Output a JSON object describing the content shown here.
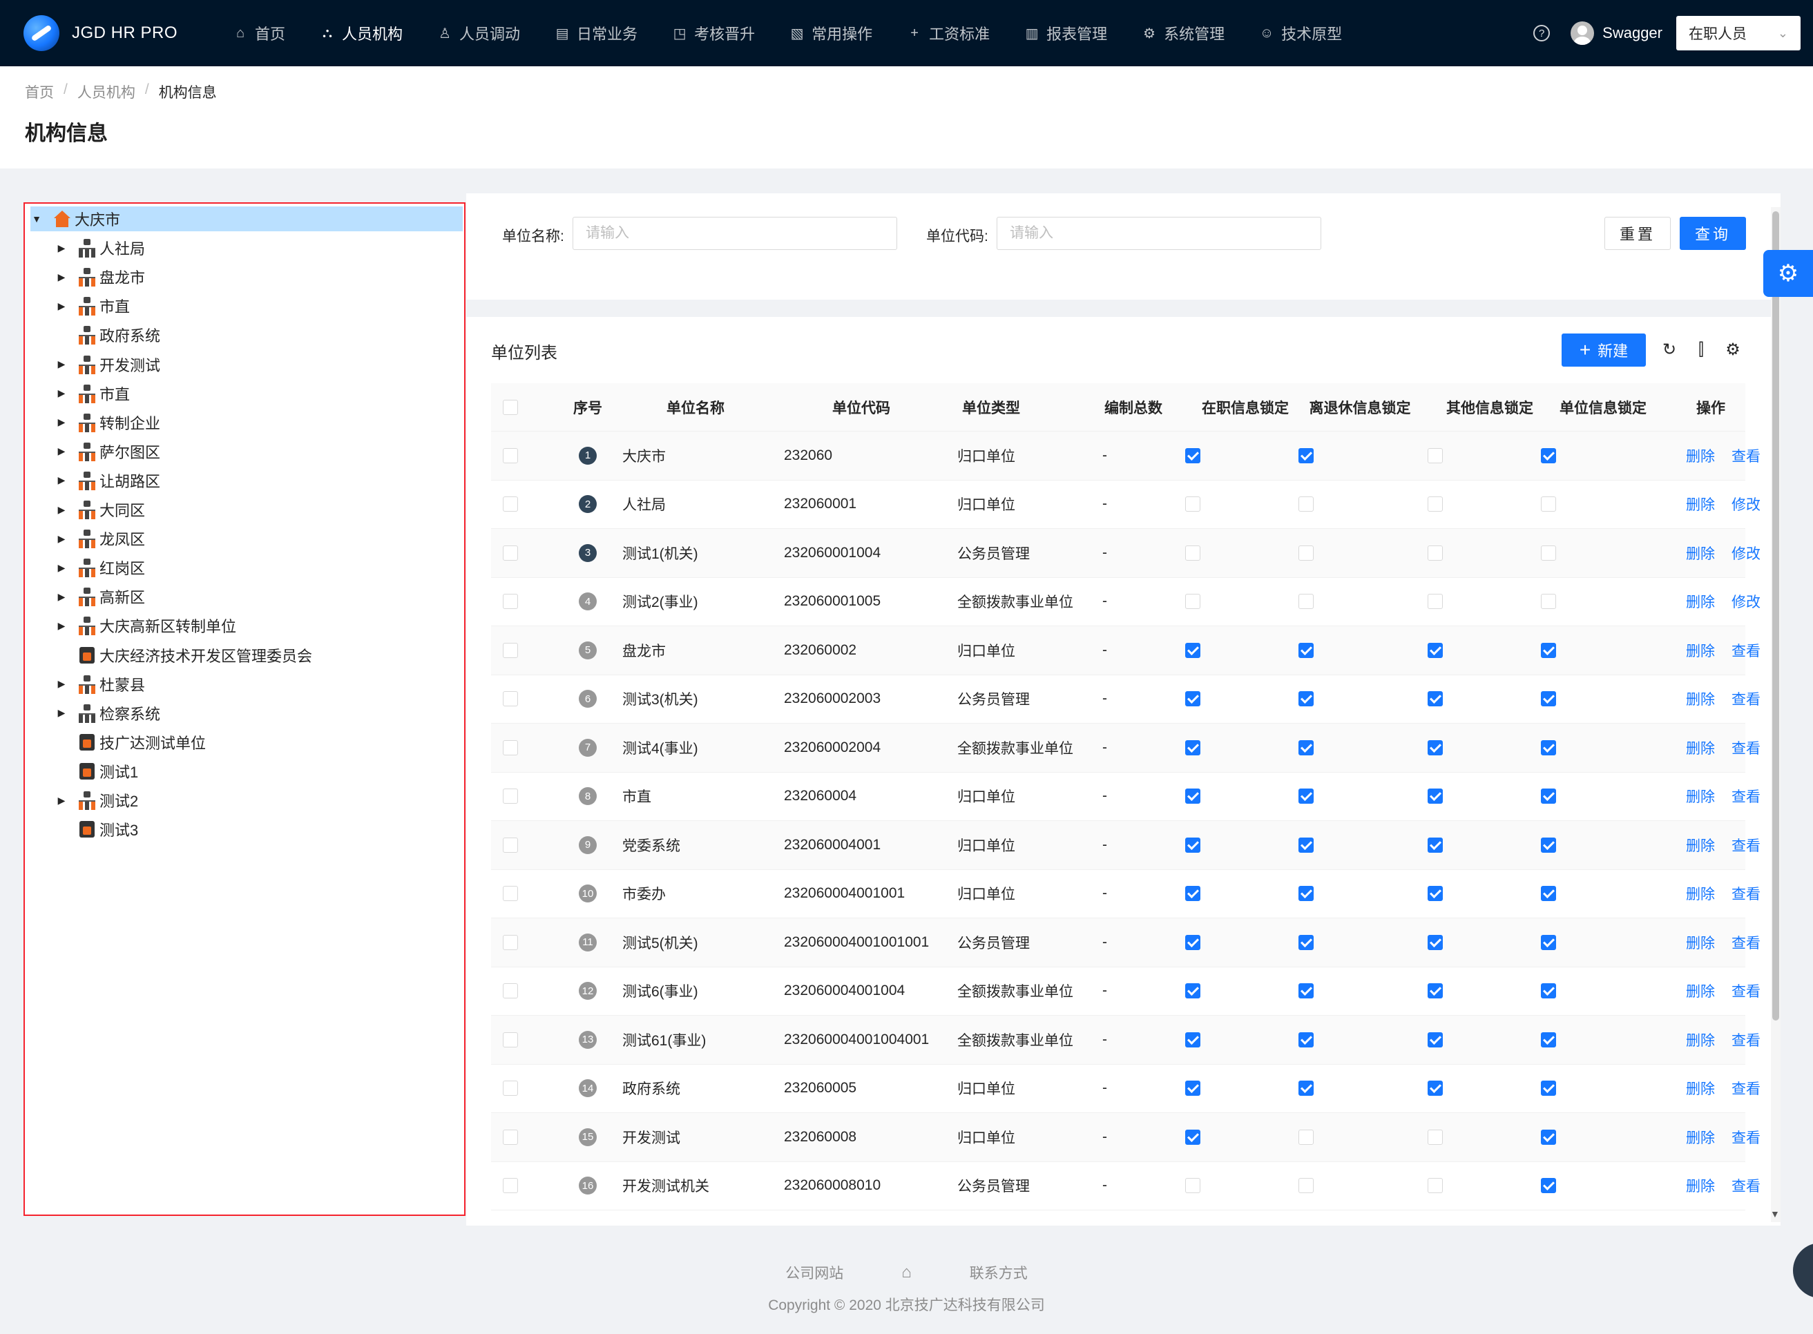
{
  "app": {
    "title": "JGD HR PRO"
  },
  "nav": [
    {
      "label": "首页",
      "icon": "home-icon",
      "glyph": "⌂"
    },
    {
      "label": "人员机构",
      "icon": "org-icon",
      "glyph": "⛬",
      "active": true
    },
    {
      "label": "人员调动",
      "icon": "user-icon",
      "glyph": "♙"
    },
    {
      "label": "日常业务",
      "icon": "profile-icon",
      "glyph": "▤"
    },
    {
      "label": "考核晋升",
      "icon": "rise-icon",
      "glyph": "◳"
    },
    {
      "label": "常用操作",
      "icon": "file-icon",
      "glyph": "▧"
    },
    {
      "label": "工资标准",
      "icon": "plus-icon",
      "glyph": "+"
    },
    {
      "label": "报表管理",
      "icon": "chart-icon",
      "glyph": "▥"
    },
    {
      "label": "系统管理",
      "icon": "setting-icon",
      "glyph": "⚙"
    },
    {
      "label": "技术原型",
      "icon": "smile-icon",
      "glyph": "☺"
    }
  ],
  "header": {
    "username": "Swagger",
    "status_select": "在职人员"
  },
  "breadcrumb": [
    "首页",
    "人员机构",
    "机构信息"
  ],
  "page_title": "机构信息",
  "tree": [
    {
      "label": "大庆市",
      "icon": "home",
      "level": 0,
      "expanded": true,
      "selected": true
    },
    {
      "label": "人社局",
      "icon": "org-dark",
      "level": 1,
      "has_children": true
    },
    {
      "label": "盘龙市",
      "icon": "org",
      "level": 1,
      "has_children": true
    },
    {
      "label": "市直",
      "icon": "org",
      "level": 1,
      "has_children": true
    },
    {
      "label": "政府系统",
      "icon": "org",
      "level": 1,
      "has_children": false
    },
    {
      "label": "开发测试",
      "icon": "org",
      "level": 1,
      "has_children": true
    },
    {
      "label": "市直",
      "icon": "org",
      "level": 1,
      "has_children": true
    },
    {
      "label": "转制企业",
      "icon": "org",
      "level": 1,
      "has_children": true
    },
    {
      "label": "萨尔图区",
      "icon": "org",
      "level": 1,
      "has_children": true
    },
    {
      "label": "让胡路区",
      "icon": "org",
      "level": 1,
      "has_children": true
    },
    {
      "label": "大同区",
      "icon": "org",
      "level": 1,
      "has_children": true
    },
    {
      "label": "龙凤区",
      "icon": "org",
      "level": 1,
      "has_children": true
    },
    {
      "label": "红岗区",
      "icon": "org",
      "level": 1,
      "has_children": true
    },
    {
      "label": "高新区",
      "icon": "org",
      "level": 1,
      "has_children": true
    },
    {
      "label": "大庆高新区转制单位",
      "icon": "org",
      "level": 1,
      "has_children": true
    },
    {
      "label": "大庆经济技术开发区管理委员会",
      "icon": "unit",
      "level": 1,
      "has_children": false
    },
    {
      "label": "杜蒙县",
      "icon": "org",
      "level": 1,
      "has_children": true
    },
    {
      "label": "检察系统",
      "icon": "org-dark",
      "level": 1,
      "has_children": true
    },
    {
      "label": "技广达测试单位",
      "icon": "unit",
      "level": 1,
      "has_children": false
    },
    {
      "label": "测试1",
      "icon": "unit",
      "level": 1,
      "has_children": false
    },
    {
      "label": "测试2",
      "icon": "org",
      "level": 1,
      "has_children": true
    },
    {
      "label": "测试3",
      "icon": "unit",
      "level": 1,
      "has_children": false
    }
  ],
  "search": {
    "name_label": "单位名称:",
    "name_placeholder": "请输入",
    "code_label": "单位代码:",
    "code_placeholder": "请输入",
    "reset_label": "重置",
    "query_label": "查询"
  },
  "table": {
    "title": "单位列表",
    "new_label": "新建",
    "columns": [
      "序号",
      "单位名称",
      "单位代码",
      "单位类型",
      "编制总数",
      "在职信息锁定",
      "离退休信息锁定",
      "其他信息锁定",
      "单位信息锁定",
      "操作"
    ],
    "rows": [
      {
        "no": "1",
        "name": "大庆市",
        "code": "232060",
        "type": "归口单位",
        "total": "-",
        "locks": [
          true,
          true,
          false,
          true
        ],
        "actions": [
          "删除",
          "查看"
        ]
      },
      {
        "no": "2",
        "name": "人社局",
        "code": "232060001",
        "type": "归口单位",
        "total": "-",
        "locks": [
          false,
          false,
          false,
          false
        ],
        "actions": [
          "删除",
          "修改"
        ]
      },
      {
        "no": "3",
        "name": "测试1(机关)",
        "code": "232060001004",
        "type": "公务员管理",
        "total": "-",
        "locks": [
          false,
          false,
          false,
          false
        ],
        "actions": [
          "删除",
          "修改"
        ]
      },
      {
        "no": "4",
        "name": "测试2(事业)",
        "code": "232060001005",
        "type": "全额拨款事业单位",
        "total": "-",
        "locks": [
          false,
          false,
          false,
          false
        ],
        "actions": [
          "删除",
          "修改"
        ]
      },
      {
        "no": "5",
        "name": "盘龙市",
        "code": "232060002",
        "type": "归口单位",
        "total": "-",
        "locks": [
          true,
          true,
          true,
          true
        ],
        "actions": [
          "删除",
          "查看"
        ]
      },
      {
        "no": "6",
        "name": "测试3(机关)",
        "code": "232060002003",
        "type": "公务员管理",
        "total": "-",
        "locks": [
          true,
          true,
          true,
          true
        ],
        "actions": [
          "删除",
          "查看"
        ]
      },
      {
        "no": "7",
        "name": "测试4(事业)",
        "code": "232060002004",
        "type": "全额拨款事业单位",
        "total": "-",
        "locks": [
          true,
          true,
          true,
          true
        ],
        "actions": [
          "删除",
          "查看"
        ]
      },
      {
        "no": "8",
        "name": "市直",
        "code": "232060004",
        "type": "归口单位",
        "total": "-",
        "locks": [
          true,
          true,
          true,
          true
        ],
        "actions": [
          "删除",
          "查看"
        ]
      },
      {
        "no": "9",
        "name": "党委系统",
        "code": "232060004001",
        "type": "归口单位",
        "total": "-",
        "locks": [
          true,
          true,
          true,
          true
        ],
        "actions": [
          "删除",
          "查看"
        ]
      },
      {
        "no": "10",
        "name": "市委办",
        "code": "232060004001001",
        "type": "归口单位",
        "total": "-",
        "locks": [
          true,
          true,
          true,
          true
        ],
        "actions": [
          "删除",
          "查看"
        ]
      },
      {
        "no": "11",
        "name": "测试5(机关)",
        "code": "232060004001001001",
        "type": "公务员管理",
        "total": "-",
        "locks": [
          true,
          true,
          true,
          true
        ],
        "actions": [
          "删除",
          "查看"
        ]
      },
      {
        "no": "12",
        "name": "测试6(事业)",
        "code": "232060004001004",
        "type": "全额拨款事业单位",
        "total": "-",
        "locks": [
          true,
          true,
          true,
          true
        ],
        "actions": [
          "删除",
          "查看"
        ]
      },
      {
        "no": "13",
        "name": "测试61(事业)",
        "code": "232060004001004001",
        "type": "全额拨款事业单位",
        "total": "-",
        "locks": [
          true,
          true,
          true,
          true
        ],
        "actions": [
          "删除",
          "查看"
        ]
      },
      {
        "no": "14",
        "name": "政府系统",
        "code": "232060005",
        "type": "归口单位",
        "total": "-",
        "locks": [
          true,
          true,
          true,
          true
        ],
        "actions": [
          "删除",
          "查看"
        ]
      },
      {
        "no": "15",
        "name": "开发测试",
        "code": "232060008",
        "type": "归口单位",
        "total": "-",
        "locks": [
          true,
          false,
          false,
          true
        ],
        "actions": [
          "删除",
          "查看"
        ]
      },
      {
        "no": "16",
        "name": "开发测试机关",
        "code": "232060008010",
        "type": "公务员管理",
        "total": "-",
        "locks": [
          false,
          false,
          false,
          true
        ],
        "actions": [
          "删除",
          "查看"
        ]
      }
    ]
  },
  "footer": {
    "links": [
      "公司网站",
      "联系方式"
    ],
    "copyright": "Copyright © 2020 北京技广达科技有限公司"
  }
}
